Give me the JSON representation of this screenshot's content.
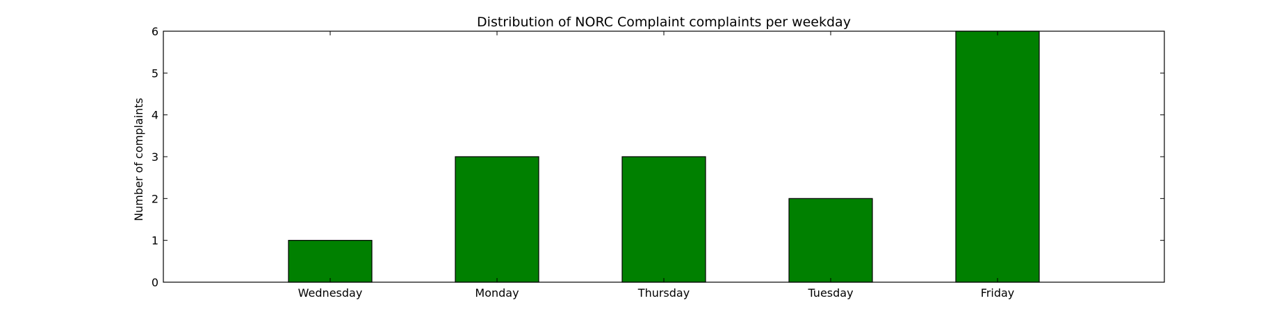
{
  "chart_data": {
    "type": "bar",
    "title": "Distribution of  NORC Complaint complaints per weekday",
    "xlabel": "",
    "ylabel": "Number of complaints",
    "categories": [
      "Wednesday",
      "Monday",
      "Thursday",
      "Tuesday",
      "Friday"
    ],
    "values": [
      1,
      3,
      3,
      2,
      6
    ],
    "ylim": [
      0,
      6
    ],
    "yticks": [
      0,
      1,
      2,
      3,
      4,
      5,
      6
    ],
    "grid": false,
    "bar_color": "#008000",
    "edge_color": "#000000"
  }
}
